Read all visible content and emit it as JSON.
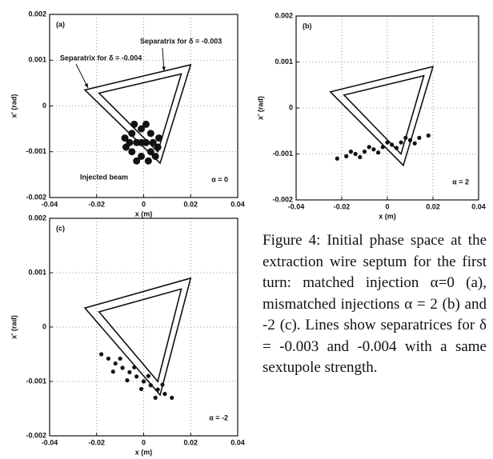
{
  "chart_data": [
    {
      "type": "scatter",
      "panel_label": "(a)",
      "xlabel": "x (m)",
      "ylabel": "x' (rad)",
      "xlim": [
        -0.04,
        0.04
      ],
      "ylim": [
        -0.002,
        0.002
      ],
      "xticks": [
        -0.04,
        -0.02,
        0,
        0.02,
        0.04
      ],
      "yticks": [
        -0.002,
        -0.001,
        0,
        0.001,
        0.002
      ],
      "grid": true,
      "alpha_label": "α = 0",
      "annotations": [
        "Separatrix for δ = -0.003",
        "Separatrix for δ = -0.004",
        "Injected beam"
      ],
      "series": [
        {
          "type": "line",
          "color": "#111111",
          "x": [
            -0.025,
            0.02,
            0.007
          ],
          "y": [
            0.00035,
            0.0009,
            -0.00125
          ]
        },
        {
          "type": "line",
          "color": "#111111",
          "x": [
            -0.019,
            0.016,
            0.006
          ],
          "y": [
            0.00028,
            0.0007,
            -0.001
          ]
        },
        {
          "type": "scatter",
          "color": "#111111",
          "x": [
            -0.001,
            0.004,
            -0.006,
            -0.001,
            -0.001,
            0.003,
            -0.005,
            0.003,
            -0.005,
            0.006,
            -0.008,
            0.001,
            -0.003,
            0.002,
            -0.004,
            0.0065,
            -0.0075,
            0.001,
            -0.003,
            0.005
          ],
          "y": [
            -0.0008,
            -0.0008,
            -0.0008,
            -0.0005,
            -0.0011,
            -0.0006,
            -0.0006,
            -0.001,
            -0.001,
            -0.0009,
            -0.0007,
            -0.0004,
            -0.0012,
            -0.0012,
            -0.0004,
            -0.0007,
            -0.0009,
            -0.0008,
            -0.0008,
            -0.0011
          ]
        }
      ]
    },
    {
      "type": "scatter",
      "panel_label": "(b)",
      "xlabel": "x (m)",
      "ylabel": "x' (rad)",
      "xlim": [
        -0.04,
        0.04
      ],
      "ylim": [
        -0.002,
        0.002
      ],
      "xticks": [
        -0.04,
        -0.02,
        0,
        0.02,
        0.04
      ],
      "yticks": [
        -0.002,
        -0.001,
        0,
        0.001,
        0.002
      ],
      "grid": true,
      "alpha_label": "α = 2",
      "series": [
        {
          "type": "line",
          "color": "#111111",
          "x": [
            -0.025,
            0.02,
            0.007
          ],
          "y": [
            0.00035,
            0.0009,
            -0.00125
          ]
        },
        {
          "type": "line",
          "color": "#111111",
          "x": [
            -0.019,
            0.016,
            0.006
          ],
          "y": [
            0.00028,
            0.0007,
            -0.001
          ]
        },
        {
          "type": "scatter",
          "color": "#111111",
          "x": [
            -0.022,
            -0.018,
            -0.014,
            -0.01,
            -0.006,
            -0.002,
            0.002,
            0.006,
            0.01,
            0.014,
            0.018,
            -0.016,
            -0.008,
            0,
            0.008,
            -0.012,
            -0.004,
            0.004,
            0.012
          ],
          "y": [
            -0.0011,
            -0.00105,
            -0.001,
            -0.00095,
            -0.0009,
            -0.00085,
            -0.0008,
            -0.00075,
            -0.0007,
            -0.00065,
            -0.0006,
            -0.00095,
            -0.00085,
            -0.00075,
            -0.00065,
            -0.00107,
            -0.00097,
            -0.00087,
            -0.00077
          ]
        }
      ]
    },
    {
      "type": "scatter",
      "panel_label": "(c)",
      "xlabel": "x (m)",
      "ylabel": "x' (rad)",
      "xlim": [
        -0.04,
        0.04
      ],
      "ylim": [
        -0.002,
        0.002
      ],
      "xticks": [
        -0.04,
        -0.02,
        0,
        0.02,
        0.04
      ],
      "yticks": [
        -0.002,
        -0.001,
        0,
        0.001,
        0.002
      ],
      "grid": true,
      "alpha_label": "α = -2",
      "series": [
        {
          "type": "line",
          "color": "#111111",
          "x": [
            -0.025,
            0.02,
            0.007
          ],
          "y": [
            0.00035,
            0.0009,
            -0.00125
          ]
        },
        {
          "type": "line",
          "color": "#111111",
          "x": [
            -0.019,
            0.016,
            0.006
          ],
          "y": [
            0.00028,
            0.0007,
            -0.001
          ]
        },
        {
          "type": "scatter",
          "color": "#111111",
          "x": [
            -0.018,
            -0.015,
            -0.012,
            -0.009,
            -0.006,
            -0.003,
            0,
            0.003,
            0.006,
            0.009,
            0.012,
            -0.01,
            -0.004,
            0.002,
            0.008,
            -0.013,
            -0.007,
            -0.001,
            0.005
          ],
          "y": [
            -0.0005,
            -0.00058,
            -0.00067,
            -0.00075,
            -0.00083,
            -0.00091,
            -0.001,
            -0.00107,
            -0.00115,
            -0.00123,
            -0.0013,
            -0.00058,
            -0.00074,
            -0.0009,
            -0.00106,
            -0.00082,
            -0.00098,
            -0.00114,
            -0.0013
          ]
        }
      ]
    }
  ],
  "caption": "Figure 4: Initial phase space at the extraction wire septum for the first turn: matched injection α=0 (a), mismatched injections α = 2 (b) and -2 (c). Lines show separatrices for δ = -0.003 and -0.004 with a same sextupole strength."
}
